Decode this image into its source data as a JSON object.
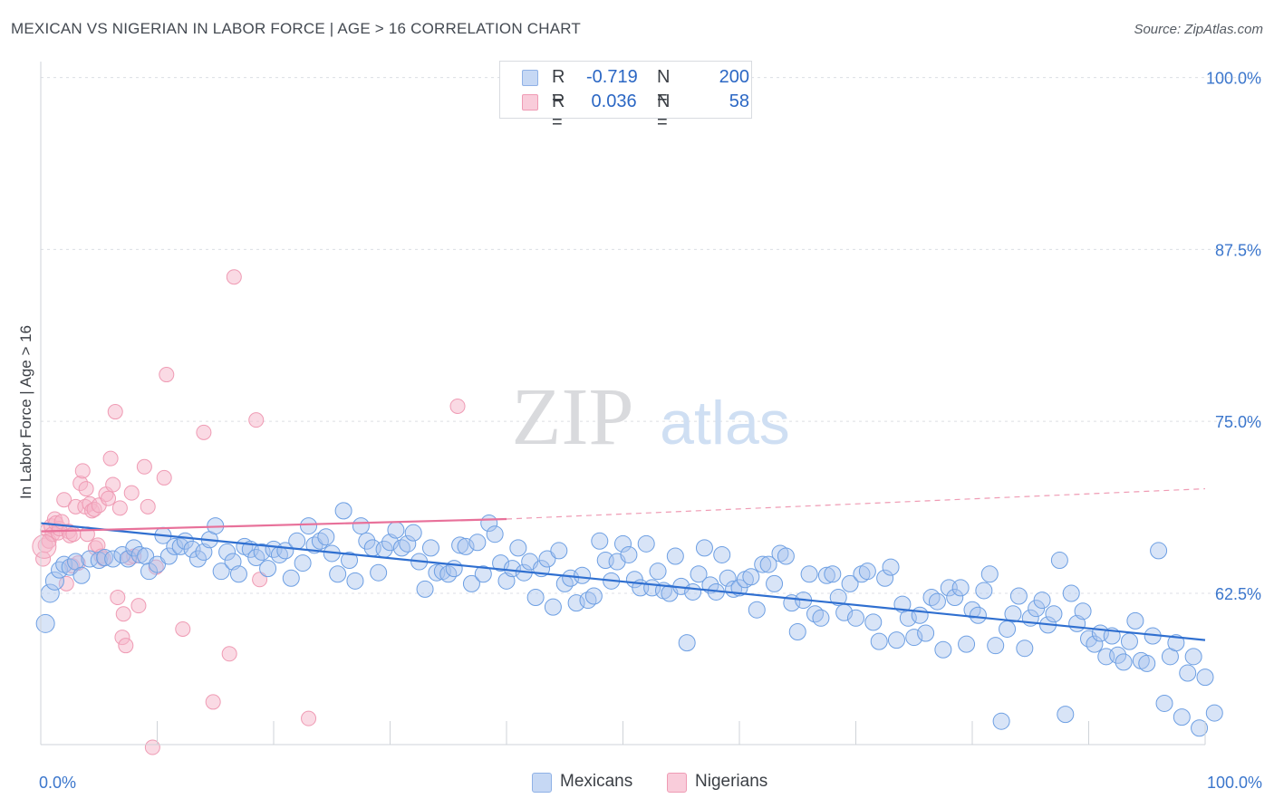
{
  "title": "MEXICAN VS NIGERIAN IN LABOR FORCE | AGE > 16 CORRELATION CHART",
  "source": "Source: ZipAtlas.com",
  "watermark": {
    "zip": "ZIP",
    "atlas": "atlas"
  },
  "legend": {
    "rows": [
      {
        "r_label": "R =",
        "r_value": "-0.719",
        "n_label": "N =",
        "n_value": "200",
        "color": "#a9c4ee"
      },
      {
        "r_label": "R =",
        "r_value": " 0.036",
        "n_label": "N =",
        "n_value": "58",
        "color": "#f5b6c9"
      }
    ]
  },
  "bottom_legend": [
    {
      "label": "Mexicans",
      "color": "#a9c4ee"
    },
    {
      "label": "Nigerians",
      "color": "#f5b6c9"
    }
  ],
  "chart_data": {
    "type": "scatter",
    "title": "MEXICAN VS NIGERIAN IN LABOR FORCE | AGE > 16 CORRELATION CHART",
    "xlabel": "",
    "ylabel": "In Labor Force | Age > 16",
    "xlim": [
      0,
      100
    ],
    "ylim": [
      51.5,
      100.5
    ],
    "y_ticks": [
      62.5,
      75.0,
      87.5,
      100.0
    ],
    "y_tick_labels": [
      "62.5%",
      "75.0%",
      "87.5%",
      "100.0%"
    ],
    "x_tick_labels": [
      "0.0%",
      "100.0%"
    ],
    "grid": true,
    "legend_position": "top-center",
    "series": [
      {
        "name": "Mexicans",
        "color": "#6d9fe3",
        "points": [
          [
            0.4,
            60.3
          ],
          [
            0.8,
            62.5
          ],
          [
            1.2,
            63.4
          ],
          [
            1.6,
            64.2
          ],
          [
            2.0,
            64.6
          ],
          [
            2.5,
            64.4
          ],
          [
            3.0,
            64.8
          ],
          [
            3.5,
            63.8
          ],
          [
            4.2,
            65.0
          ],
          [
            5.0,
            64.9
          ],
          [
            5.5,
            65.1
          ],
          [
            6.2,
            65.0
          ],
          [
            7.0,
            65.3
          ],
          [
            7.5,
            65.0
          ],
          [
            8.0,
            65.8
          ],
          [
            8.5,
            65.3
          ],
          [
            9.0,
            65.2
          ],
          [
            9.3,
            64.1
          ],
          [
            10.0,
            64.6
          ],
          [
            10.5,
            66.7
          ],
          [
            11.0,
            65.2
          ],
          [
            11.5,
            65.9
          ],
          [
            12.0,
            65.9
          ],
          [
            12.4,
            66.3
          ],
          [
            13.0,
            65.7
          ],
          [
            13.5,
            65.0
          ],
          [
            14.0,
            65.5
          ],
          [
            14.5,
            66.4
          ],
          [
            15.0,
            67.4
          ],
          [
            15.5,
            64.1
          ],
          [
            16.0,
            65.5
          ],
          [
            16.5,
            64.8
          ],
          [
            17.0,
            63.9
          ],
          [
            17.5,
            65.9
          ],
          [
            18.0,
            65.7
          ],
          [
            18.5,
            65.1
          ],
          [
            19.0,
            65.5
          ],
          [
            19.5,
            64.3
          ],
          [
            20.0,
            65.7
          ],
          [
            20.5,
            65.3
          ],
          [
            21.0,
            65.6
          ],
          [
            21.5,
            63.6
          ],
          [
            22.0,
            66.3
          ],
          [
            22.5,
            64.7
          ],
          [
            23.0,
            67.4
          ],
          [
            23.5,
            66.0
          ],
          [
            24.0,
            66.3
          ],
          [
            24.5,
            66.6
          ],
          [
            25.0,
            65.4
          ],
          [
            25.5,
            63.9
          ],
          [
            26.0,
            68.5
          ],
          [
            26.5,
            64.9
          ],
          [
            27.0,
            63.4
          ],
          [
            27.5,
            67.4
          ],
          [
            28.0,
            66.3
          ],
          [
            28.5,
            65.8
          ],
          [
            29.0,
            64.0
          ],
          [
            29.5,
            65.7
          ],
          [
            30.0,
            66.2
          ],
          [
            30.5,
            67.1
          ],
          [
            31.0,
            65.8
          ],
          [
            31.5,
            66.1
          ],
          [
            32.0,
            66.9
          ],
          [
            32.5,
            64.8
          ],
          [
            33.0,
            62.8
          ],
          [
            33.5,
            65.8
          ],
          [
            34.0,
            64.0
          ],
          [
            34.5,
            64.1
          ],
          [
            35.0,
            63.9
          ],
          [
            35.5,
            64.3
          ],
          [
            36.0,
            66.0
          ],
          [
            36.5,
            65.9
          ],
          [
            37.0,
            63.2
          ],
          [
            37.5,
            66.2
          ],
          [
            38.0,
            63.9
          ],
          [
            38.5,
            67.6
          ],
          [
            39.0,
            66.8
          ],
          [
            39.5,
            64.7
          ],
          [
            40.0,
            63.4
          ],
          [
            40.5,
            64.3
          ],
          [
            41.0,
            65.8
          ],
          [
            41.5,
            64.0
          ],
          [
            42.0,
            64.8
          ],
          [
            42.5,
            62.2
          ],
          [
            43.0,
            64.3
          ],
          [
            43.5,
            65.0
          ],
          [
            44.0,
            61.5
          ],
          [
            44.5,
            65.6
          ],
          [
            45.0,
            63.2
          ],
          [
            45.5,
            63.6
          ],
          [
            46.0,
            61.8
          ],
          [
            46.5,
            63.8
          ],
          [
            47.0,
            62.0
          ],
          [
            47.5,
            62.3
          ],
          [
            48.0,
            66.3
          ],
          [
            48.5,
            64.9
          ],
          [
            49.0,
            63.4
          ],
          [
            49.5,
            64.8
          ],
          [
            50.0,
            66.1
          ],
          [
            50.5,
            65.3
          ],
          [
            51.0,
            63.5
          ],
          [
            51.5,
            62.9
          ],
          [
            52.0,
            66.1
          ],
          [
            52.5,
            62.9
          ],
          [
            53.0,
            64.1
          ],
          [
            53.5,
            62.7
          ],
          [
            54.0,
            62.5
          ],
          [
            54.5,
            65.2
          ],
          [
            55.0,
            63.0
          ],
          [
            55.5,
            58.9
          ],
          [
            56.0,
            62.6
          ],
          [
            56.5,
            63.9
          ],
          [
            57.0,
            65.8
          ],
          [
            57.5,
            63.1
          ],
          [
            58.0,
            62.6
          ],
          [
            58.5,
            65.3
          ],
          [
            59.0,
            63.6
          ],
          [
            59.5,
            62.8
          ],
          [
            60.0,
            62.9
          ],
          [
            60.5,
            63.5
          ],
          [
            61.0,
            63.7
          ],
          [
            61.5,
            61.3
          ],
          [
            62.0,
            64.6
          ],
          [
            62.5,
            64.6
          ],
          [
            63.0,
            63.2
          ],
          [
            63.5,
            65.4
          ],
          [
            64.0,
            65.2
          ],
          [
            64.5,
            61.8
          ],
          [
            65.0,
            59.7
          ],
          [
            65.5,
            62.0
          ],
          [
            66.0,
            63.9
          ],
          [
            66.5,
            61.0
          ],
          [
            67.0,
            60.7
          ],
          [
            67.5,
            63.8
          ],
          [
            68.0,
            63.9
          ],
          [
            68.5,
            62.2
          ],
          [
            69.0,
            61.1
          ],
          [
            69.5,
            63.2
          ],
          [
            70.0,
            60.7
          ],
          [
            70.5,
            63.9
          ],
          [
            71.0,
            64.1
          ],
          [
            71.5,
            60.4
          ],
          [
            72.0,
            59.0
          ],
          [
            72.5,
            63.6
          ],
          [
            73.0,
            64.4
          ],
          [
            73.5,
            59.1
          ],
          [
            74.0,
            61.7
          ],
          [
            74.5,
            60.7
          ],
          [
            75.0,
            59.3
          ],
          [
            75.5,
            60.9
          ],
          [
            76.0,
            59.6
          ],
          [
            76.5,
            62.2
          ],
          [
            77.0,
            61.9
          ],
          [
            77.5,
            58.4
          ],
          [
            78.0,
            62.9
          ],
          [
            78.5,
            62.2
          ],
          [
            79.0,
            62.9
          ],
          [
            79.5,
            58.8
          ],
          [
            80.0,
            61.3
          ],
          [
            80.5,
            60.9
          ],
          [
            81.0,
            62.7
          ],
          [
            81.5,
            63.9
          ],
          [
            82.0,
            58.7
          ],
          [
            82.5,
            53.2
          ],
          [
            83.0,
            59.9
          ],
          [
            83.5,
            61.0
          ],
          [
            84.0,
            62.3
          ],
          [
            84.5,
            58.5
          ],
          [
            85.0,
            60.7
          ],
          [
            85.5,
            61.4
          ],
          [
            86.0,
            62.0
          ],
          [
            86.5,
            60.2
          ],
          [
            87.0,
            61.0
          ],
          [
            87.5,
            64.9
          ],
          [
            88.0,
            53.7
          ],
          [
            88.5,
            62.5
          ],
          [
            89.0,
            60.3
          ],
          [
            89.5,
            61.2
          ],
          [
            90.0,
            59.2
          ],
          [
            90.5,
            58.8
          ],
          [
            91.0,
            59.6
          ],
          [
            91.5,
            57.9
          ],
          [
            92.0,
            59.4
          ],
          [
            92.5,
            58.0
          ],
          [
            93.0,
            57.5
          ],
          [
            93.5,
            59.0
          ],
          [
            94.0,
            60.5
          ],
          [
            94.5,
            57.6
          ],
          [
            95.0,
            57.4
          ],
          [
            95.5,
            59.4
          ],
          [
            96.0,
            65.6
          ],
          [
            96.5,
            54.5
          ],
          [
            97.0,
            57.9
          ],
          [
            97.5,
            58.9
          ],
          [
            98.0,
            53.5
          ],
          [
            98.5,
            56.7
          ],
          [
            99.0,
            57.9
          ],
          [
            99.5,
            52.7
          ],
          [
            100.0,
            56.4
          ],
          [
            100.8,
            53.8
          ]
        ],
        "trendline": {
          "x": [
            0,
            100
          ],
          "y": [
            67.6,
            59.1
          ]
        }
      },
      {
        "name": "Nigerians",
        "color": "#ef8aa9",
        "points": [
          [
            0.2,
            65.0
          ],
          [
            0.4,
            66.0
          ],
          [
            0.6,
            67.1
          ],
          [
            0.7,
            66.3
          ],
          [
            0.9,
            67.4
          ],
          [
            1.0,
            66.8
          ],
          [
            1.2,
            67.9
          ],
          [
            1.3,
            67.6
          ],
          [
            1.5,
            66.9
          ],
          [
            1.6,
            67.2
          ],
          [
            1.8,
            67.7
          ],
          [
            2.0,
            69.3
          ],
          [
            2.2,
            63.2
          ],
          [
            2.4,
            67.0
          ],
          [
            2.5,
            66.7
          ],
          [
            2.7,
            64.5
          ],
          [
            2.8,
            66.8
          ],
          [
            3.0,
            68.8
          ],
          [
            3.2,
            64.7
          ],
          [
            3.4,
            70.5
          ],
          [
            3.6,
            71.4
          ],
          [
            3.8,
            68.8
          ],
          [
            3.9,
            70.1
          ],
          [
            4.0,
            66.8
          ],
          [
            4.2,
            69.0
          ],
          [
            4.4,
            68.5
          ],
          [
            4.6,
            68.6
          ],
          [
            4.7,
            65.8
          ],
          [
            4.9,
            66.0
          ],
          [
            5.0,
            68.9
          ],
          [
            5.2,
            65.2
          ],
          [
            5.4,
            65.0
          ],
          [
            5.6,
            69.7
          ],
          [
            5.8,
            69.4
          ],
          [
            6.0,
            72.3
          ],
          [
            6.2,
            70.4
          ],
          [
            6.4,
            75.7
          ],
          [
            6.6,
            62.2
          ],
          [
            6.8,
            68.7
          ],
          [
            7.0,
            59.3
          ],
          [
            7.1,
            61.0
          ],
          [
            7.3,
            58.7
          ],
          [
            7.6,
            65.1
          ],
          [
            7.8,
            69.8
          ],
          [
            8.0,
            65.2
          ],
          [
            8.4,
            61.6
          ],
          [
            8.9,
            71.7
          ],
          [
            9.2,
            68.8
          ],
          [
            9.6,
            51.3
          ],
          [
            9.9,
            64.4
          ],
          [
            10.6,
            70.9
          ],
          [
            10.8,
            78.4
          ],
          [
            12.2,
            59.9
          ],
          [
            14.0,
            74.2
          ],
          [
            14.8,
            54.6
          ],
          [
            16.2,
            58.1
          ],
          [
            16.6,
            85.5
          ],
          [
            18.5,
            75.1
          ]
        ],
        "extra_points": [
          [
            18.8,
            63.5
          ],
          [
            23.0,
            53.4
          ],
          [
            35.8,
            76.1
          ]
        ],
        "trendline": {
          "x": [
            0,
            40
          ],
          "y": [
            67.0,
            67.9
          ]
        },
        "trendline_extension": {
          "x": [
            40,
            100
          ],
          "y": [
            67.9,
            70.1
          ]
        }
      }
    ]
  }
}
